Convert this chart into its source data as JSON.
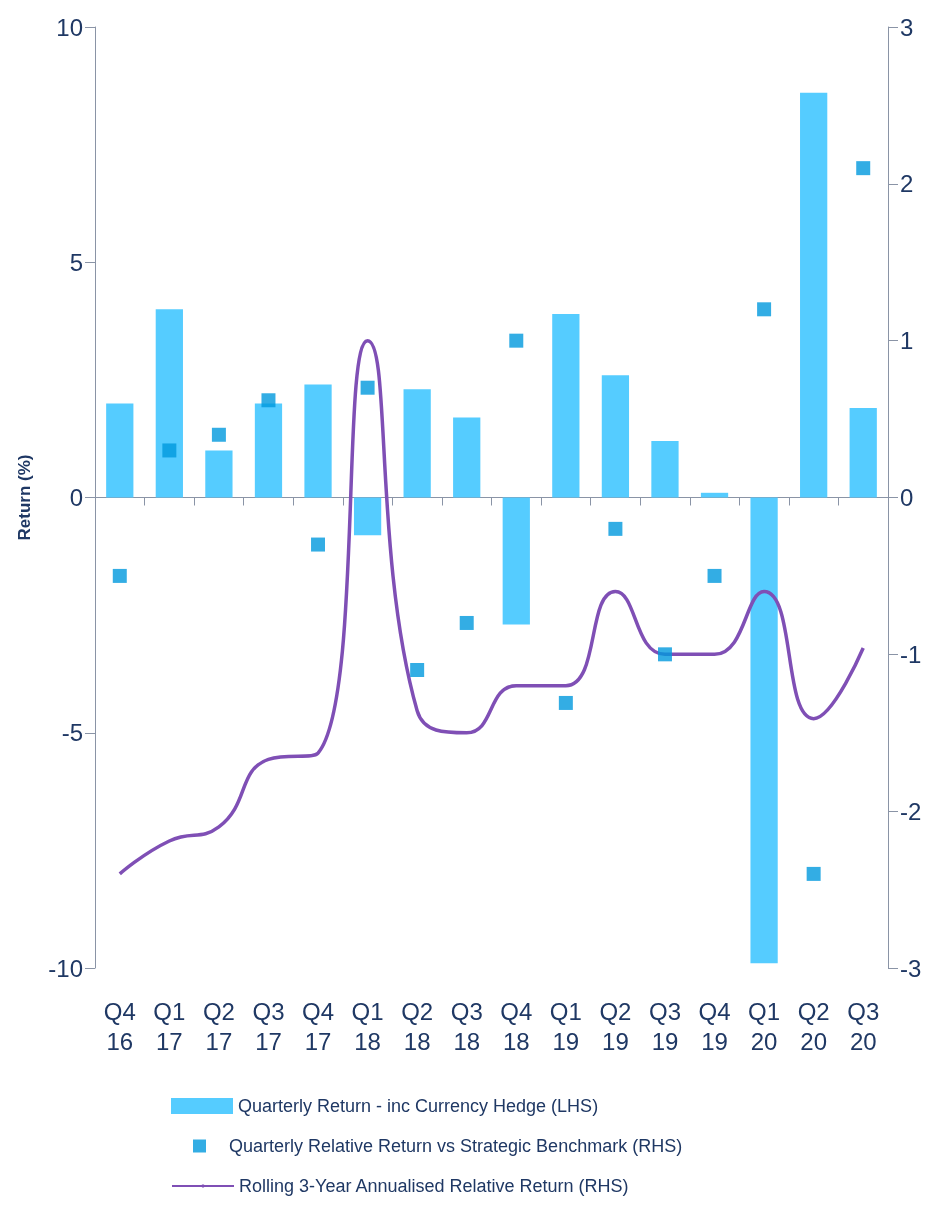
{
  "chart_data": {
    "type": "bar",
    "ylabel": "Return (%)",
    "categories": [
      "Q4 16",
      "Q1 17",
      "Q2 17",
      "Q3 17",
      "Q4 17",
      "Q1 18",
      "Q2 18",
      "Q3 18",
      "Q4 18",
      "Q1 19",
      "Q2 19",
      "Q3 19",
      "Q4 19",
      "Q1 20",
      "Q2 20",
      "Q3 20"
    ],
    "series": [
      {
        "name": "Quarterly Return - inc Currency Hedge (LHS)",
        "color": "#55ccff",
        "values": [
          2.0,
          4.0,
          1.0,
          2.0,
          2.4,
          -0.8,
          2.3,
          1.7,
          -2.7,
          3.9,
          2.6,
          1.2,
          0.1,
          -9.9,
          8.6,
          1.9
        ]
      },
      {
        "name": "Quarterly Relative Return vs Strategic Benchmark (RHS)",
        "type": "scatter",
        "axis": "y2",
        "marker": "square",
        "color": "#0099dd",
        "values": [
          -0.5,
          0.3,
          0.4,
          0.62,
          -0.3,
          0.7,
          -1.1,
          -0.8,
          1.0,
          -1.31,
          -0.2,
          -1.0,
          -0.5,
          1.2,
          -2.4,
          2.1
        ]
      },
      {
        "name": "Rolling 3-Year Annualised Relative Return (RHS)",
        "type": "line",
        "axis": "y2",
        "marker": "none",
        "line_style": "solid",
        "color": "#7f4fb5",
        "values": [
          -2.4,
          -2.19,
          -2.1,
          -1.67,
          -1.63,
          1.0,
          -1.36,
          -1.5,
          -1.2,
          -1.2,
          -0.6,
          -1.0,
          -1.0,
          -0.6,
          -1.41,
          -0.96
        ]
      }
    ],
    "ylim": [
      -10,
      10
    ],
    "yticks": [
      -10,
      -5,
      0,
      5,
      10
    ],
    "y2lim": [
      -3,
      3
    ],
    "y2ticks": [
      -3,
      -2,
      -1,
      0,
      1,
      2,
      3
    ],
    "legend": "bottom"
  }
}
